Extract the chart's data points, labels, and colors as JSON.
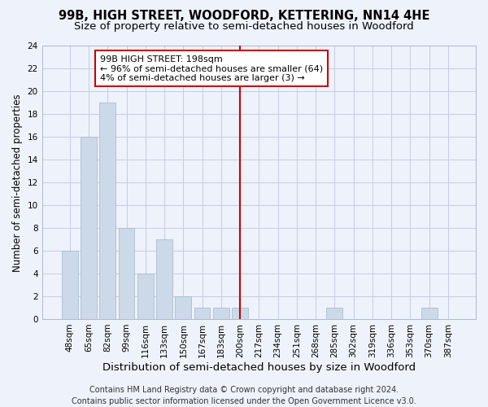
{
  "title": "99B, HIGH STREET, WOODFORD, KETTERING, NN14 4HE",
  "subtitle": "Size of property relative to semi-detached houses in Woodford",
  "xlabel": "Distribution of semi-detached houses by size in Woodford",
  "ylabel": "Number of semi-detached properties",
  "categories": [
    "48sqm",
    "65sqm",
    "82sqm",
    "99sqm",
    "116sqm",
    "133sqm",
    "150sqm",
    "167sqm",
    "183sqm",
    "200sqm",
    "217sqm",
    "234sqm",
    "251sqm",
    "268sqm",
    "285sqm",
    "302sqm",
    "319sqm",
    "336sqm",
    "353sqm",
    "370sqm",
    "387sqm"
  ],
  "values": [
    6,
    16,
    19,
    8,
    4,
    7,
    2,
    1,
    1,
    1,
    0,
    0,
    0,
    0,
    1,
    0,
    0,
    0,
    0,
    1,
    0
  ],
  "bar_color": "#ccd9e8",
  "bar_edge_color": "#a8bfd0",
  "vline_color": "#cc0000",
  "annotation_text": "99B HIGH STREET: 198sqm\n← 96% of semi-detached houses are smaller (64)\n4% of semi-detached houses are larger (3) →",
  "annotation_box_color": "#cc0000",
  "ylim": [
    0,
    24
  ],
  "yticks": [
    0,
    2,
    4,
    6,
    8,
    10,
    12,
    14,
    16,
    18,
    20,
    22,
    24
  ],
  "footer": "Contains HM Land Registry data © Crown copyright and database right 2024.\nContains public sector information licensed under the Open Government Licence v3.0.",
  "background_color": "#eef2fb",
  "grid_color": "#c5cce0",
  "title_fontsize": 10.5,
  "subtitle_fontsize": 9.5,
  "xlabel_fontsize": 9.5,
  "ylabel_fontsize": 8.5,
  "tick_fontsize": 7.5,
  "annotation_fontsize": 8,
  "footer_fontsize": 7
}
